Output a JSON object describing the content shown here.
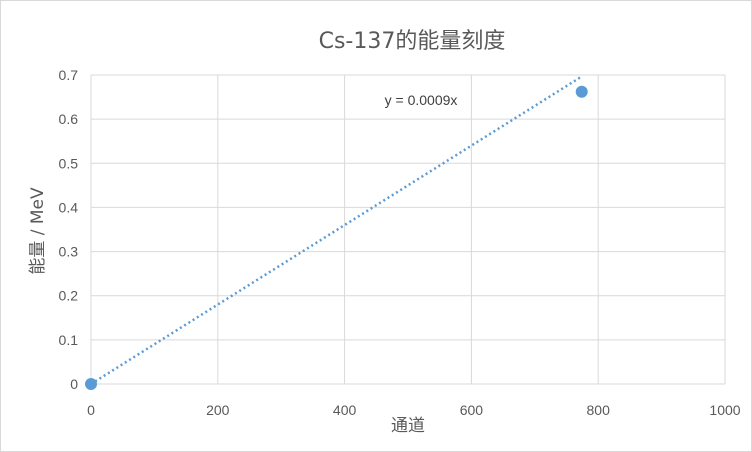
{
  "chart_data": {
    "type": "scatter",
    "title": "Cs-137的能量刻度",
    "xlabel": "通道",
    "ylabel": "能量 / MeV",
    "xlim": [
      0,
      1000
    ],
    "ylim": [
      0,
      0.7
    ],
    "xticks": [
      0,
      200,
      400,
      600,
      800,
      1000
    ],
    "yticks": [
      0,
      0.1,
      0.2,
      0.3,
      0.4,
      0.5,
      0.6,
      0.7
    ],
    "grid": true,
    "legend": "none",
    "series": [
      {
        "points": [
          {
            "x": 0,
            "y": 0
          },
          {
            "x": 774,
            "y": 0.662
          }
        ],
        "color": "#5b9bd5",
        "marker": "circle",
        "trendline": {
          "type": "linear",
          "slope": 0.0009,
          "intercept": 0,
          "style": "dotted",
          "x_range": [
            0,
            774
          ],
          "equation_label": "y = 0.0009x"
        }
      }
    ]
  }
}
